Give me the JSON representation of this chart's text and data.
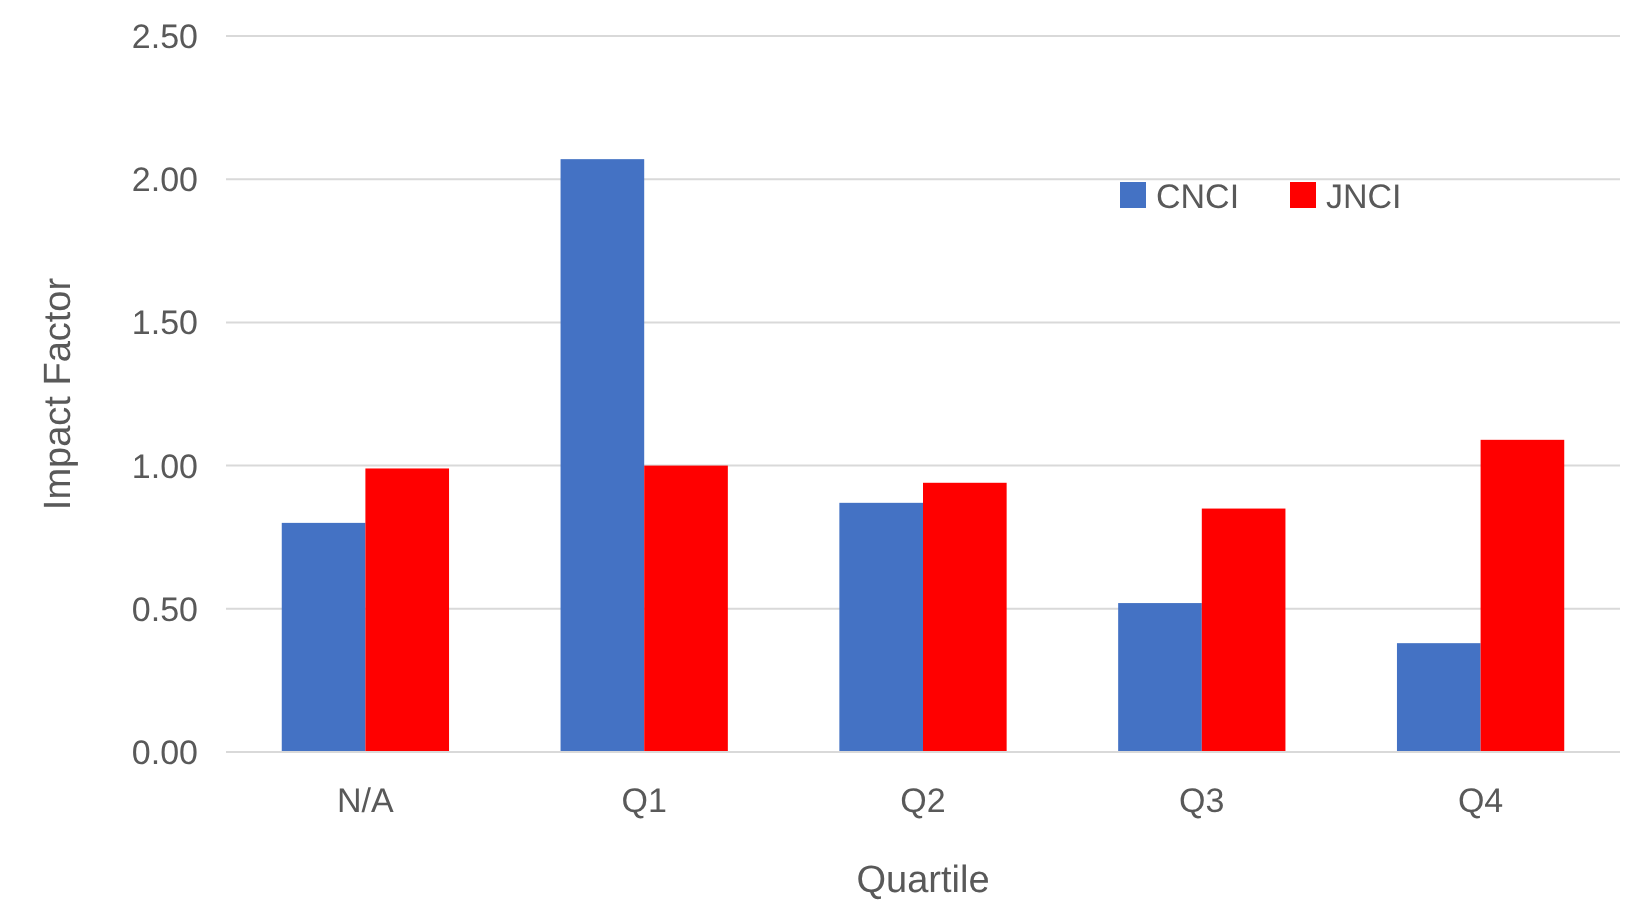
{
  "chart_data": {
    "type": "bar",
    "xlabel": "Quartile",
    "ylabel": "Impact Factor",
    "categories": [
      "N/A",
      "Q1",
      "Q2",
      "Q3",
      "Q4"
    ],
    "series": [
      {
        "name": "CNCI",
        "color": "#4472c4",
        "values": [
          0.8,
          2.07,
          0.87,
          0.52,
          0.38
        ]
      },
      {
        "name": "JNCI",
        "color": "#ff0000",
        "values": [
          0.99,
          1.0,
          0.94,
          0.85,
          1.09
        ]
      }
    ],
    "ylim": [
      0,
      2.5
    ],
    "yticks": [
      {
        "value": 0,
        "label": "0.00"
      },
      {
        "value": 0.5,
        "label": "0.50"
      },
      {
        "value": 1,
        "label": "1.00"
      },
      {
        "value": 1.5,
        "label": "1.50"
      },
      {
        "value": 2,
        "label": "2.00"
      },
      {
        "value": 2.5,
        "label": "2.50"
      }
    ],
    "grid": "y",
    "legend": "top right"
  }
}
